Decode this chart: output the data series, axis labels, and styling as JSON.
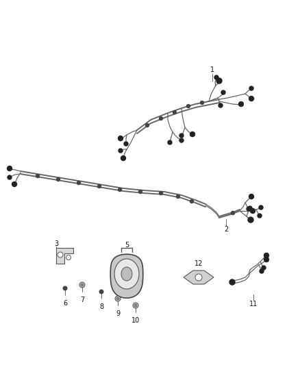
{
  "bg_color": "#ffffff",
  "line_color": "#555555",
  "figsize": [
    4.38,
    5.33
  ],
  "dpi": 100,
  "wire_color": "#666666",
  "connector_color": "#222222",
  "clamp_color": "#333333",
  "label_color": "#111111",
  "label_size": 7.0
}
